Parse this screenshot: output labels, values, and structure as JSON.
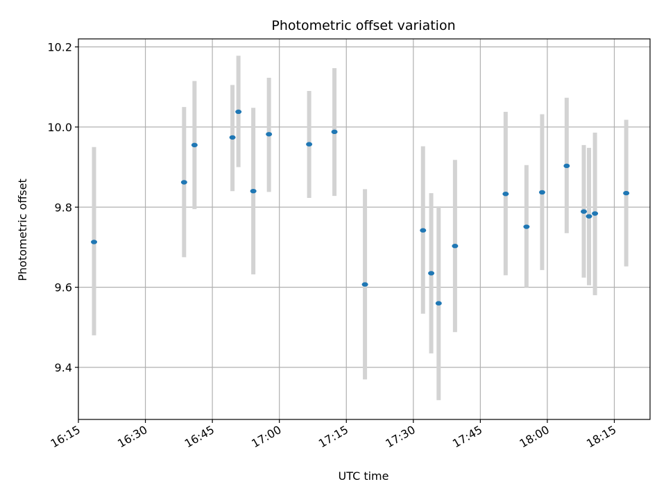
{
  "chart_data": {
    "type": "scatter",
    "title": "Photometric offset variation",
    "xlabel": "UTC time",
    "ylabel": "Photometric offset",
    "xlim": [
      "16:15",
      "18:23"
    ],
    "ylim": [
      9.27,
      10.22
    ],
    "xticks": [
      "16:15",
      "16:30",
      "16:45",
      "17:00",
      "17:15",
      "17:30",
      "17:45",
      "18:00",
      "18:15"
    ],
    "yticks": [
      9.4,
      9.6,
      9.8,
      10.0,
      10.2
    ],
    "grid": true,
    "marker_color": "#1f77b4",
    "errorbar_color": "#d3d3d3",
    "points": [
      {
        "x": "16:18:30",
        "y": 9.713,
        "ylo": 9.48,
        "yhi": 9.95
      },
      {
        "x": "16:38:40",
        "y": 9.862,
        "ylo": 9.675,
        "yhi": 10.05
      },
      {
        "x": "16:41:00",
        "y": 9.955,
        "ylo": 9.795,
        "yhi": 10.115
      },
      {
        "x": "16:49:30",
        "y": 9.974,
        "ylo": 9.84,
        "yhi": 10.105
      },
      {
        "x": "16:50:50",
        "y": 10.038,
        "ylo": 9.9,
        "yhi": 10.178
      },
      {
        "x": "16:54:10",
        "y": 9.84,
        "ylo": 9.632,
        "yhi": 10.048
      },
      {
        "x": "16:57:40",
        "y": 9.982,
        "ylo": 9.838,
        "yhi": 10.123
      },
      {
        "x": "17:06:40",
        "y": 9.957,
        "ylo": 9.823,
        "yhi": 10.09
      },
      {
        "x": "17:12:20",
        "y": 9.988,
        "ylo": 9.828,
        "yhi": 10.147
      },
      {
        "x": "17:19:10",
        "y": 9.607,
        "ylo": 9.37,
        "yhi": 9.845
      },
      {
        "x": "17:32:10",
        "y": 9.742,
        "ylo": 9.534,
        "yhi": 9.952
      },
      {
        "x": "17:34:00",
        "y": 9.635,
        "ylo": 9.435,
        "yhi": 9.835
      },
      {
        "x": "17:35:40",
        "y": 9.56,
        "ylo": 9.318,
        "yhi": 9.802
      },
      {
        "x": "17:39:20",
        "y": 9.703,
        "ylo": 9.488,
        "yhi": 9.918
      },
      {
        "x": "17:50:40",
        "y": 9.833,
        "ylo": 9.63,
        "yhi": 10.038
      },
      {
        "x": "17:55:20",
        "y": 9.751,
        "ylo": 9.6,
        "yhi": 9.905
      },
      {
        "x": "17:58:50",
        "y": 9.837,
        "ylo": 9.643,
        "yhi": 10.032
      },
      {
        "x": "18:04:20",
        "y": 9.903,
        "ylo": 9.735,
        "yhi": 10.073
      },
      {
        "x": "18:08:10",
        "y": 9.789,
        "ylo": 9.624,
        "yhi": 9.955
      },
      {
        "x": "18:09:20",
        "y": 9.777,
        "ylo": 9.605,
        "yhi": 9.948
      },
      {
        "x": "18:10:40",
        "y": 9.784,
        "ylo": 9.58,
        "yhi": 9.986
      },
      {
        "x": "18:17:40",
        "y": 9.835,
        "ylo": 9.652,
        "yhi": 10.018
      }
    ]
  }
}
